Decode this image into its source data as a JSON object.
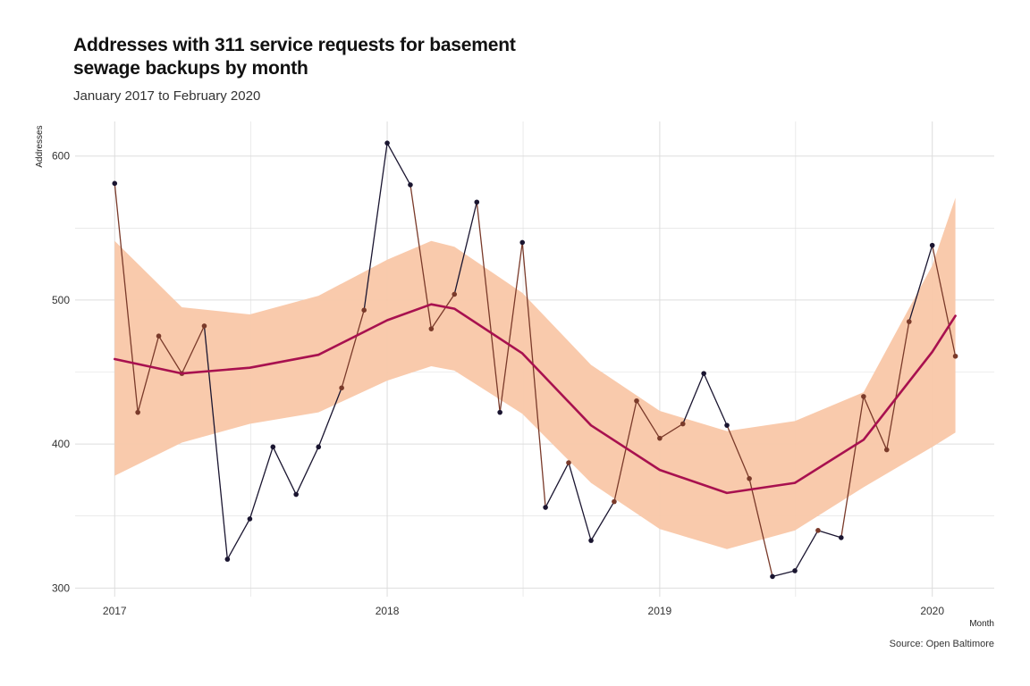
{
  "chart_data": {
    "type": "line",
    "title": "Addresses with 311 service requests for basement sewage backups by month",
    "subtitle": "January 2017 to February 2020",
    "caption": "Source: Open Baltimore",
    "xlabel": "Month",
    "ylabel": "Addresses",
    "xlim": [
      "2016-11-09",
      "2020-03-24"
    ],
    "ylim": [
      294,
      624
    ],
    "x_ticks": [
      "2017",
      "2018",
      "2019",
      "2020"
    ],
    "y_ticks": [
      300,
      400,
      500,
      600
    ],
    "grid": true,
    "legend": "none",
    "series": [
      {
        "x": [
          "2017-01",
          "2017-02",
          "2017-03",
          "2017-04",
          "2017-05",
          "2017-06",
          "2017-07",
          "2017-08",
          "2017-09",
          "2017-10",
          "2017-11",
          "2017-12",
          "2018-01",
          "2018-02",
          "2018-03",
          "2018-04",
          "2018-05",
          "2018-06",
          "2018-07",
          "2018-08",
          "2018-09",
          "2018-10",
          "2018-11",
          "2018-12",
          "2019-01",
          "2019-02",
          "2019-03",
          "2019-04",
          "2019-05",
          "2019-06",
          "2019-07",
          "2019-08",
          "2019-09",
          "2019-10",
          "2019-11",
          "2019-12",
          "2020-01",
          "2020-02"
        ],
        "values": [
          581,
          422,
          475,
          449,
          482,
          320,
          348,
          398,
          365,
          398,
          439,
          493,
          609,
          580,
          480,
          504,
          568,
          422,
          540,
          356,
          387,
          333,
          360,
          430,
          404,
          414,
          449,
          413,
          376,
          308,
          312,
          340,
          335,
          433,
          396,
          485,
          538,
          461
        ]
      }
    ],
    "smooth": {
      "x": [
        "2017-01",
        "2017-04",
        "2017-07",
        "2017-10",
        "2018-01",
        "2018-03",
        "2018-04",
        "2018-07",
        "2018-10",
        "2019-01",
        "2019-04",
        "2019-07",
        "2019-10",
        "2020-01",
        "2020-02"
      ],
      "values": [
        459,
        449,
        453,
        462,
        486,
        497,
        494,
        463,
        413,
        382,
        366,
        373,
        403,
        464,
        489
      ],
      "lower": [
        378,
        401,
        414,
        422,
        444,
        454,
        451,
        421,
        373,
        341,
        327,
        340,
        370,
        398,
        408
      ],
      "upper": [
        541,
        495,
        490,
        503,
        528,
        541,
        537,
        505,
        455,
        423,
        409,
        416,
        436,
        524,
        571
      ]
    },
    "colors": {
      "band": "#f9c7a8",
      "smooth": "#a8114f",
      "line_low": "#1a1530",
      "line_high": "#7a3a2a",
      "grid": "#dddddd"
    }
  }
}
